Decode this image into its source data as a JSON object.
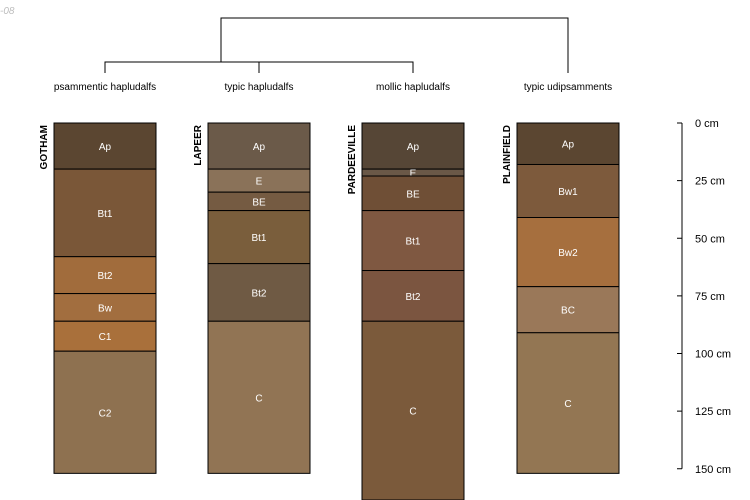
{
  "corner_label": "-08",
  "profiles": [
    {
      "name": "GOTHAM",
      "classification": "psammentic hapludalfs",
      "horizons": [
        {
          "label": "Ap",
          "top": 0,
          "bottom": 20,
          "color": "#5b4631"
        },
        {
          "label": "Bt1",
          "top": 20,
          "bottom": 58,
          "color": "#7a5738"
        },
        {
          "label": "Bt2",
          "top": 58,
          "bottom": 74,
          "color": "#a16c3c"
        },
        {
          "label": "Bw",
          "top": 74,
          "bottom": 86,
          "color": "#a26e3f"
        },
        {
          "label": "C1",
          "top": 86,
          "bottom": 99,
          "color": "#a9703b"
        },
        {
          "label": "C2",
          "top": 99,
          "bottom": 152,
          "color": "#8e7150"
        }
      ]
    },
    {
      "name": "LAPEER",
      "classification": "typic hapludalfs",
      "horizons": [
        {
          "label": "Ap",
          "top": 0,
          "bottom": 20,
          "color": "#6b5a49"
        },
        {
          "label": "E",
          "top": 20,
          "bottom": 30,
          "color": "#8a7259"
        },
        {
          "label": "BE",
          "top": 30,
          "bottom": 38,
          "color": "#755b42"
        },
        {
          "label": "Bt1",
          "top": 38,
          "bottom": 61,
          "color": "#7a5e3c"
        },
        {
          "label": "Bt2",
          "top": 61,
          "bottom": 86,
          "color": "#6f5a44"
        },
        {
          "label": "C",
          "top": 86,
          "bottom": 152,
          "color": "#917454"
        }
      ]
    },
    {
      "name": "PARDEEVILLE",
      "classification": "mollic hapludalfs",
      "horizons": [
        {
          "label": "Ap",
          "top": 0,
          "bottom": 20,
          "color": "#564636"
        },
        {
          "label": "E",
          "top": 20,
          "bottom": 23,
          "color": "#6a5847"
        },
        {
          "label": "BE",
          "top": 23,
          "bottom": 38,
          "color": "#6f4f36"
        },
        {
          "label": "Bt1",
          "top": 38,
          "bottom": 64,
          "color": "#7f5841"
        },
        {
          "label": "Bt2",
          "top": 64,
          "bottom": 86,
          "color": "#7b5540"
        },
        {
          "label": "C",
          "top": 86,
          "bottom": 165,
          "color": "#7b5a3b"
        }
      ]
    },
    {
      "name": "PLAINFIELD",
      "classification": "typic udipsamments",
      "horizons": [
        {
          "label": "Ap",
          "top": 0,
          "bottom": 18,
          "color": "#5b4631"
        },
        {
          "label": "Bw1",
          "top": 18,
          "bottom": 41,
          "color": "#7d5a3c"
        },
        {
          "label": "Bw2",
          "top": 41,
          "bottom": 71,
          "color": "#a66f3e"
        },
        {
          "label": "BC",
          "top": 71,
          "bottom": 91,
          "color": "#9a7859"
        },
        {
          "label": "C",
          "top": 91,
          "bottom": 152,
          "color": "#937653"
        }
      ]
    }
  ],
  "depth_axis": {
    "ticks": [
      {
        "value": 0,
        "label": "0 cm"
      },
      {
        "value": 25,
        "label": "25 cm"
      },
      {
        "value": 50,
        "label": "50 cm"
      },
      {
        "value": 75,
        "label": "75 cm"
      },
      {
        "value": 100,
        "label": "100 cm"
      },
      {
        "value": 125,
        "label": "125 cm"
      },
      {
        "value": 150,
        "label": "150 cm"
      }
    ]
  }
}
